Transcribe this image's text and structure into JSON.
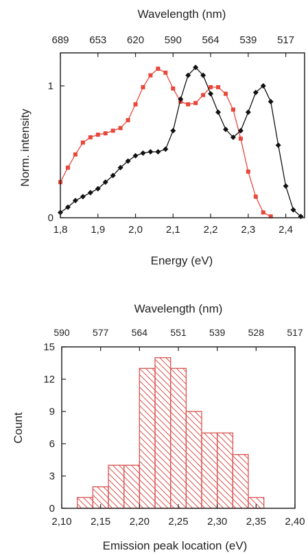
{
  "chart_data": [
    {
      "type": "scatter",
      "top_axis_title": "Wavelength (nm)",
      "top_ticks": [
        "689",
        "653",
        "620",
        "590",
        "564",
        "539",
        "517"
      ],
      "top_tick_energies": [
        1.8,
        1.9,
        2.0,
        2.1,
        2.2,
        2.3,
        2.4
      ],
      "xlabel": "Energy (eV)",
      "ylabel": "Norm. intensity",
      "xlim": [
        1.8,
        2.45
      ],
      "ylim": [
        0,
        1.25
      ],
      "x_ticks": [
        "1,8",
        "1,9",
        "2,0",
        "2,1",
        "2,2",
        "2,3",
        "2,4"
      ],
      "x_tick_values": [
        1.8,
        1.9,
        2.0,
        2.1,
        2.2,
        2.3,
        2.4
      ],
      "y_ticks": [
        "0",
        "1"
      ],
      "y_tick_values": [
        0,
        1
      ],
      "grid": false,
      "series": [
        {
          "color": "#e8473a",
          "marker": "square",
          "fit_line": true,
          "x": [
            1.8,
            1.82,
            1.84,
            1.86,
            1.88,
            1.9,
            1.92,
            1.94,
            1.96,
            1.98,
            2.0,
            2.02,
            2.04,
            2.06,
            2.08,
            2.1,
            2.12,
            2.14,
            2.16,
            2.18,
            2.2,
            2.22,
            2.24,
            2.26,
            2.28,
            2.3,
            2.32,
            2.34,
            2.36
          ],
          "y": [
            0.27,
            0.38,
            0.48,
            0.57,
            0.61,
            0.63,
            0.64,
            0.66,
            0.68,
            0.74,
            0.86,
            0.99,
            1.08,
            1.13,
            1.1,
            0.98,
            0.88,
            0.86,
            0.87,
            0.93,
            0.99,
            0.99,
            0.94,
            0.82,
            0.6,
            0.35,
            0.16,
            0.04,
            0.01
          ]
        },
        {
          "color": "#111111",
          "marker": "diamond",
          "fit_line": true,
          "x": [
            1.8,
            1.82,
            1.84,
            1.86,
            1.88,
            1.9,
            1.92,
            1.94,
            1.96,
            1.98,
            2.0,
            2.02,
            2.04,
            2.06,
            2.08,
            2.1,
            2.12,
            2.14,
            2.16,
            2.18,
            2.2,
            2.22,
            2.24,
            2.26,
            2.28,
            2.3,
            2.32,
            2.34,
            2.36,
            2.38,
            2.4,
            2.42,
            2.44
          ],
          "y": [
            0.04,
            0.08,
            0.13,
            0.16,
            0.19,
            0.22,
            0.27,
            0.32,
            0.38,
            0.43,
            0.47,
            0.49,
            0.5,
            0.5,
            0.52,
            0.66,
            0.9,
            1.08,
            1.14,
            1.08,
            0.94,
            0.8,
            0.67,
            0.61,
            0.66,
            0.8,
            0.95,
            1.0,
            0.88,
            0.55,
            0.24,
            0.06,
            0.01
          ]
        }
      ]
    },
    {
      "type": "bar",
      "subtype": "histogram",
      "top_axis_title": "Wavelength (nm)",
      "top_ticks": [
        "590",
        "577",
        "564",
        "551",
        "539",
        "528",
        "517"
      ],
      "top_tick_energies": [
        2.1,
        2.15,
        2.2,
        2.25,
        2.3,
        2.35,
        2.4
      ],
      "xlabel": "Emission peak location (eV)",
      "ylabel": "Count",
      "xlim": [
        2.1,
        2.4
      ],
      "ylim": [
        0,
        15
      ],
      "x_ticks": [
        "2,10",
        "2,15",
        "2,20",
        "2,25",
        "2,30",
        "2,35",
        "2,40"
      ],
      "x_tick_values": [
        2.1,
        2.15,
        2.2,
        2.25,
        2.3,
        2.35,
        2.4
      ],
      "y_ticks": [
        "0",
        "3",
        "6",
        "9",
        "12",
        "15"
      ],
      "y_tick_values": [
        0,
        3,
        6,
        9,
        12,
        15
      ],
      "bin_width": 0.02,
      "bins": [
        {
          "start": 2.12,
          "count": 1
        },
        {
          "start": 2.14,
          "count": 2
        },
        {
          "start": 2.16,
          "count": 4
        },
        {
          "start": 2.18,
          "count": 4
        },
        {
          "start": 2.2,
          "count": 13
        },
        {
          "start": 2.22,
          "count": 14
        },
        {
          "start": 2.24,
          "count": 13
        },
        {
          "start": 2.26,
          "count": 9
        },
        {
          "start": 2.28,
          "count": 7
        },
        {
          "start": 2.3,
          "count": 7
        },
        {
          "start": 2.32,
          "count": 5
        },
        {
          "start": 2.34,
          "count": 1
        }
      ],
      "bar_color": "#d9534f",
      "fill_pattern": "hatched",
      "grid": false
    }
  ]
}
